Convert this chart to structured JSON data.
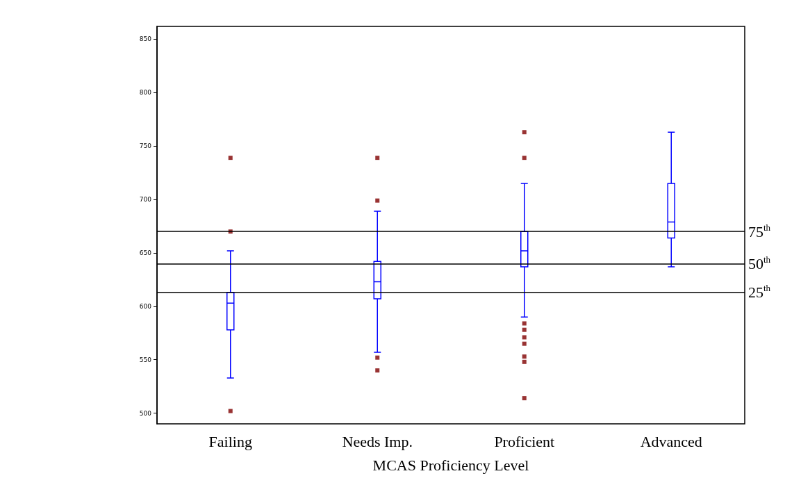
{
  "chart_data": {
    "type": "box",
    "xlabel": "MCAS Proficiency Level",
    "categories": [
      "Failing",
      "Needs Imp.",
      "Proficient",
      "Advanced"
    ],
    "ylim": [
      490,
      862
    ],
    "yticks": [
      500,
      550,
      600,
      650,
      700,
      750,
      800,
      850
    ],
    "grid": false,
    "series": [
      {
        "color": "#0000ff",
        "boxes": [
          {
            "low": 533,
            "q1": 578,
            "median": 603,
            "q3": 613,
            "high": 652
          },
          {
            "low": 557,
            "q1": 607,
            "median": 623,
            "q3": 642,
            "high": 689
          },
          {
            "low": 590,
            "q1": 637,
            "median": 652,
            "q3": 670,
            "high": 715
          },
          {
            "low": 637,
            "q1": 664,
            "median": 679,
            "q3": 715,
            "high": 763
          }
        ]
      },
      {
        "type": "scatter",
        "color": "#800000",
        "marker": "square",
        "x": [
          "Failing",
          "Failing",
          "Failing",
          "Needs Imp.",
          "Needs Imp.",
          "Needs Imp.",
          "Needs Imp.",
          "Proficient",
          "Proficient",
          "Proficient",
          "Proficient",
          "Proficient",
          "Proficient",
          "Proficient",
          "Proficient",
          "Proficient"
        ],
        "values": [
          739,
          670,
          502,
          739,
          699,
          552,
          540,
          763,
          739,
          584,
          578,
          571,
          565,
          553,
          548,
          514
        ]
      }
    ],
    "ref_lines": [
      {
        "axis": "y",
        "value": 670,
        "label": "75$^{th}$",
        "color": "#000000"
      },
      {
        "axis": "y",
        "value": 640,
        "label": "50$^{th}$",
        "color": "#000000"
      },
      {
        "axis": "y",
        "value": 613,
        "label": "25$^{th}$",
        "color": "#000000"
      }
    ]
  }
}
